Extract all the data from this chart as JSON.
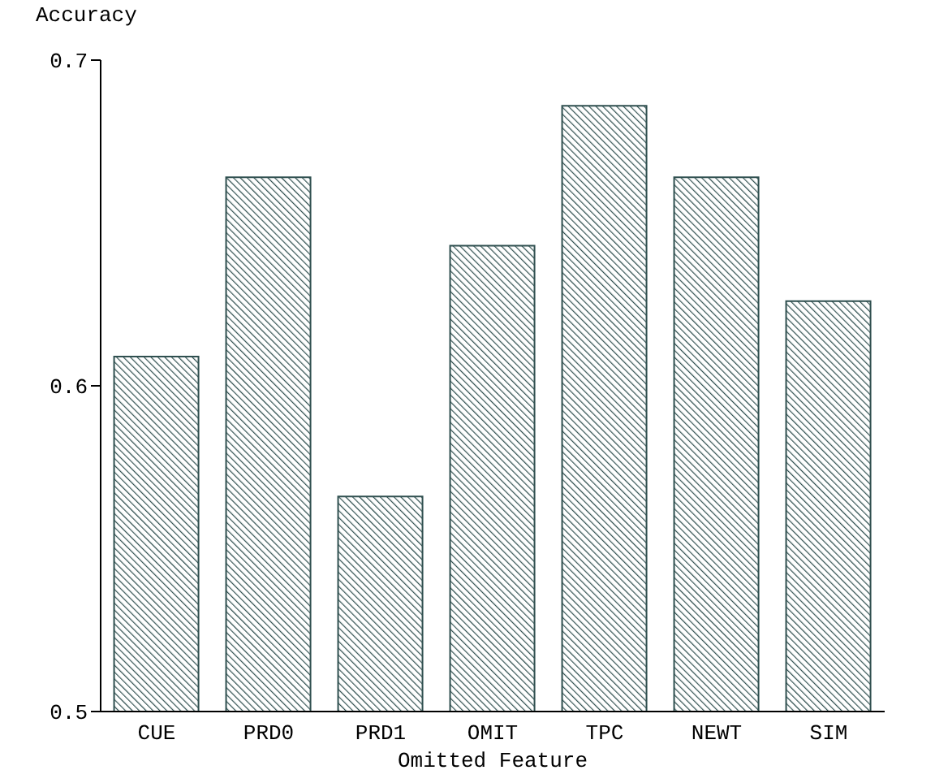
{
  "chart_data": {
    "type": "bar",
    "xlabel": "Omitted Feature",
    "ylabel": "Accuracy",
    "categories": [
      "CUE",
      "PRD0",
      "PRD1",
      "OMIT",
      "TPC",
      "NEWT",
      "SIM"
    ],
    "series": [
      {
        "color": "#2f4f4f",
        "values": [
          0.609,
          0.664,
          0.566,
          0.643,
          0.686,
          0.664,
          0.626
        ]
      }
    ],
    "ylim": [
      0.5,
      0.7
    ],
    "yticks": [
      0.5,
      0.6,
      0.7
    ],
    "grid": false,
    "legend": false
  }
}
